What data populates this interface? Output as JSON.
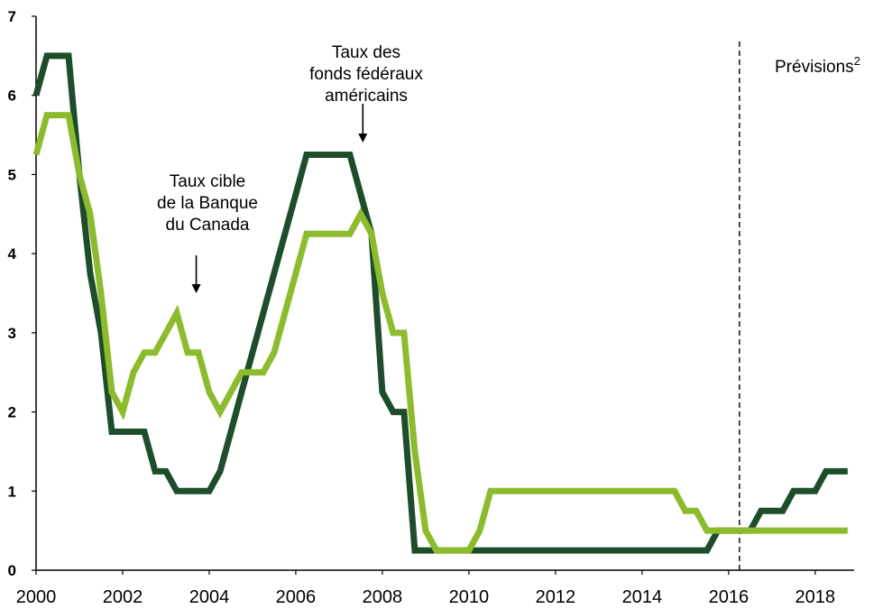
{
  "chart_data": {
    "type": "line",
    "title": "",
    "xlabel": "",
    "ylabel": "",
    "xlim": [
      2000,
      2018.9
    ],
    "ylim": [
      0,
      7
    ],
    "grid": false,
    "legend": "none",
    "x_ticks": [
      "2000",
      "2002",
      "2004",
      "2006",
      "2008",
      "2010",
      "2012",
      "2014",
      "2016",
      "2018"
    ],
    "y_ticks": [
      "0",
      "1",
      "2",
      "3",
      "4",
      "5",
      "6",
      "7"
    ],
    "forecast_start": 2016.25,
    "series": [
      {
        "color": "#1e4d2b",
        "points": [
          [
            2000.0,
            6.0
          ],
          [
            2000.25,
            6.5
          ],
          [
            2000.75,
            6.5
          ],
          [
            2001.0,
            5.0
          ],
          [
            2001.25,
            3.75
          ],
          [
            2001.5,
            3.0
          ],
          [
            2001.75,
            1.75
          ],
          [
            2002.5,
            1.75
          ],
          [
            2002.75,
            1.25
          ],
          [
            2003.0,
            1.25
          ],
          [
            2003.25,
            1.0
          ],
          [
            2004.0,
            1.0
          ],
          [
            2004.25,
            1.25
          ],
          [
            2004.5,
            1.75
          ],
          [
            2004.75,
            2.25
          ],
          [
            2005.0,
            2.75
          ],
          [
            2005.25,
            3.25
          ],
          [
            2005.5,
            3.75
          ],
          [
            2005.75,
            4.25
          ],
          [
            2006.0,
            4.75
          ],
          [
            2006.25,
            5.25
          ],
          [
            2007.25,
            5.25
          ],
          [
            2007.5,
            4.75
          ],
          [
            2007.75,
            4.25
          ],
          [
            2008.0,
            2.25
          ],
          [
            2008.25,
            2.0
          ],
          [
            2008.5,
            2.0
          ],
          [
            2008.75,
            0.25
          ],
          [
            2015.5,
            0.25
          ],
          [
            2015.75,
            0.5
          ],
          [
            2016.5,
            0.5
          ],
          [
            2016.75,
            0.75
          ],
          [
            2017.25,
            0.75
          ],
          [
            2017.5,
            1.0
          ],
          [
            2018.0,
            1.0
          ],
          [
            2018.25,
            1.25
          ],
          [
            2018.75,
            1.25
          ]
        ]
      },
      {
        "color": "#8dbb2e",
        "points": [
          [
            2000.0,
            5.25
          ],
          [
            2000.25,
            5.75
          ],
          [
            2000.75,
            5.75
          ],
          [
            2001.0,
            5.0
          ],
          [
            2001.25,
            4.5
          ],
          [
            2001.5,
            3.5
          ],
          [
            2001.75,
            2.25
          ],
          [
            2002.0,
            2.0
          ],
          [
            2002.25,
            2.5
          ],
          [
            2002.5,
            2.75
          ],
          [
            2002.75,
            2.75
          ],
          [
            2003.0,
            3.0
          ],
          [
            2003.25,
            3.25
          ],
          [
            2003.5,
            2.75
          ],
          [
            2003.75,
            2.75
          ],
          [
            2004.0,
            2.25
          ],
          [
            2004.25,
            2.0
          ],
          [
            2004.5,
            2.25
          ],
          [
            2004.75,
            2.5
          ],
          [
            2005.25,
            2.5
          ],
          [
            2005.5,
            2.75
          ],
          [
            2005.75,
            3.25
          ],
          [
            2006.0,
            3.75
          ],
          [
            2006.25,
            4.25
          ],
          [
            2007.0,
            4.25
          ],
          [
            2007.25,
            4.25
          ],
          [
            2007.5,
            4.5
          ],
          [
            2007.75,
            4.25
          ],
          [
            2008.0,
            3.5
          ],
          [
            2008.25,
            3.0
          ],
          [
            2008.5,
            3.0
          ],
          [
            2008.75,
            1.5
          ],
          [
            2009.0,
            0.5
          ],
          [
            2009.25,
            0.25
          ],
          [
            2010.0,
            0.25
          ],
          [
            2010.25,
            0.5
          ],
          [
            2010.5,
            1.0
          ],
          [
            2014.75,
            1.0
          ],
          [
            2015.0,
            0.75
          ],
          [
            2015.25,
            0.75
          ],
          [
            2015.5,
            0.5
          ],
          [
            2018.75,
            0.5
          ]
        ]
      }
    ],
    "annotations": [
      {
        "lines": [
          "Taux cible",
          "de la Banque",
          "du Canada"
        ],
        "target": [
          2003.7,
          3.5
        ]
      },
      {
        "lines": [
          "Taux des",
          "fonds fédéraux",
          "américains"
        ],
        "target": [
          2007.55,
          5.25
        ]
      }
    ],
    "forecast_label": {
      "text": "Prévisions",
      "superscript": "2"
    }
  }
}
